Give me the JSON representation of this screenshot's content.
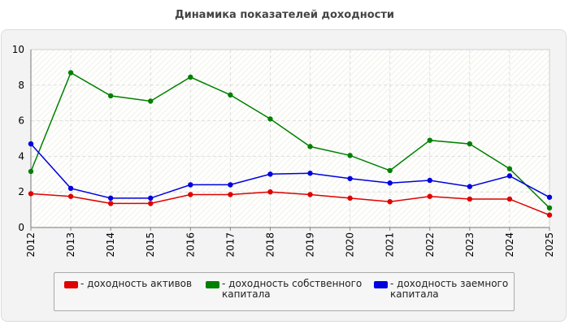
{
  "title": "Динамика показателей доходности",
  "chart_data": {
    "type": "line",
    "title": "Динамика показателей доходности",
    "xlabel": "",
    "ylabel": "",
    "ylim": [
      0,
      10
    ],
    "yticks": [
      "0",
      "2",
      "4",
      "6",
      "8",
      "10"
    ],
    "categories": [
      "2012",
      "2013",
      "2014",
      "2015",
      "2016",
      "2017",
      "2018",
      "2019",
      "2020",
      "2021",
      "2022",
      "2023",
      "2024",
      "2025"
    ],
    "grid": true,
    "legend_position": "bottom",
    "series": [
      {
        "name": "- доходность активов",
        "color": "#e00000",
        "values": [
          1.9,
          1.75,
          1.35,
          1.35,
          1.85,
          1.85,
          2.0,
          1.85,
          1.65,
          1.45,
          1.75,
          1.6,
          1.6,
          0.7
        ]
      },
      {
        "name": "- доходность собственного\nкапитала",
        "color": "#008000",
        "values": [
          3.15,
          8.7,
          7.4,
          7.1,
          8.45,
          7.45,
          6.1,
          4.55,
          4.05,
          3.2,
          4.9,
          4.7,
          3.3,
          1.1
        ]
      },
      {
        "name": "- доходность заемного\nкапитала",
        "color": "#0000e0",
        "values": [
          4.7,
          2.2,
          1.65,
          1.65,
          2.4,
          2.4,
          3.0,
          3.05,
          2.75,
          2.5,
          2.65,
          2.3,
          2.9,
          1.7
        ]
      }
    ]
  }
}
